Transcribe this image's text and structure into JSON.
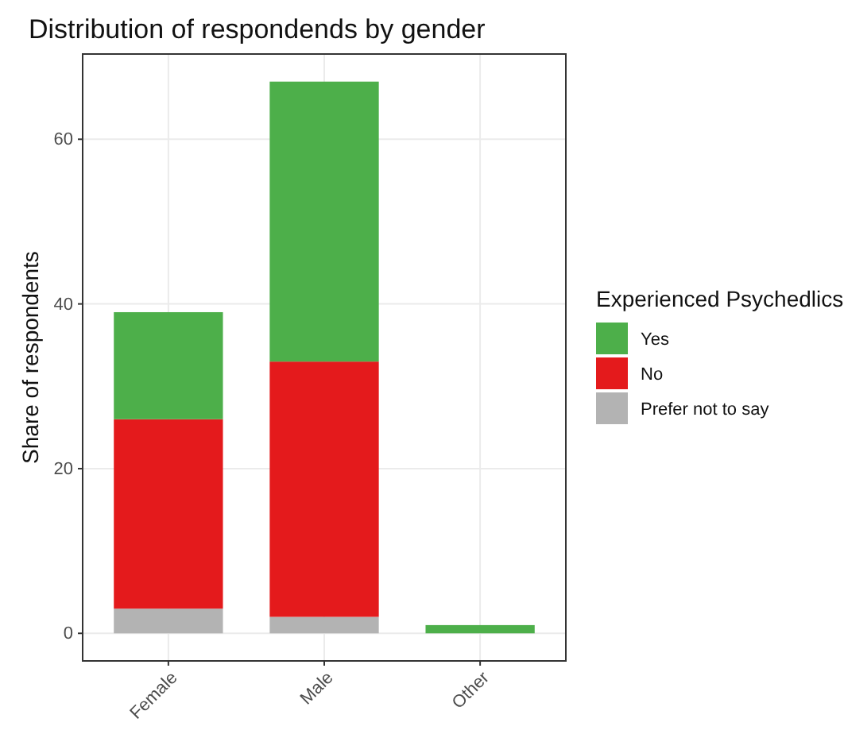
{
  "chart_data": {
    "type": "bar",
    "title": "Distribution of respondends by gender",
    "ylabel": "Share of respondents",
    "legend_title": "Experienced Psychedlics",
    "categories": [
      "Female",
      "Male",
      "Other"
    ],
    "series": [
      {
        "name": "Prefer not to say",
        "color": "#b3b3b3",
        "values": [
          3,
          2,
          0
        ]
      },
      {
        "name": "No",
        "color": "#e41a1c",
        "values": [
          23,
          31,
          0
        ]
      },
      {
        "name": "Yes",
        "color": "#4daf4a",
        "values": [
          13,
          34,
          1
        ]
      }
    ],
    "stacked": true,
    "ylim": [
      -3.35,
      70.35
    ],
    "yticks": [
      0,
      20,
      40,
      60
    ],
    "grid": true,
    "legend": "right"
  }
}
